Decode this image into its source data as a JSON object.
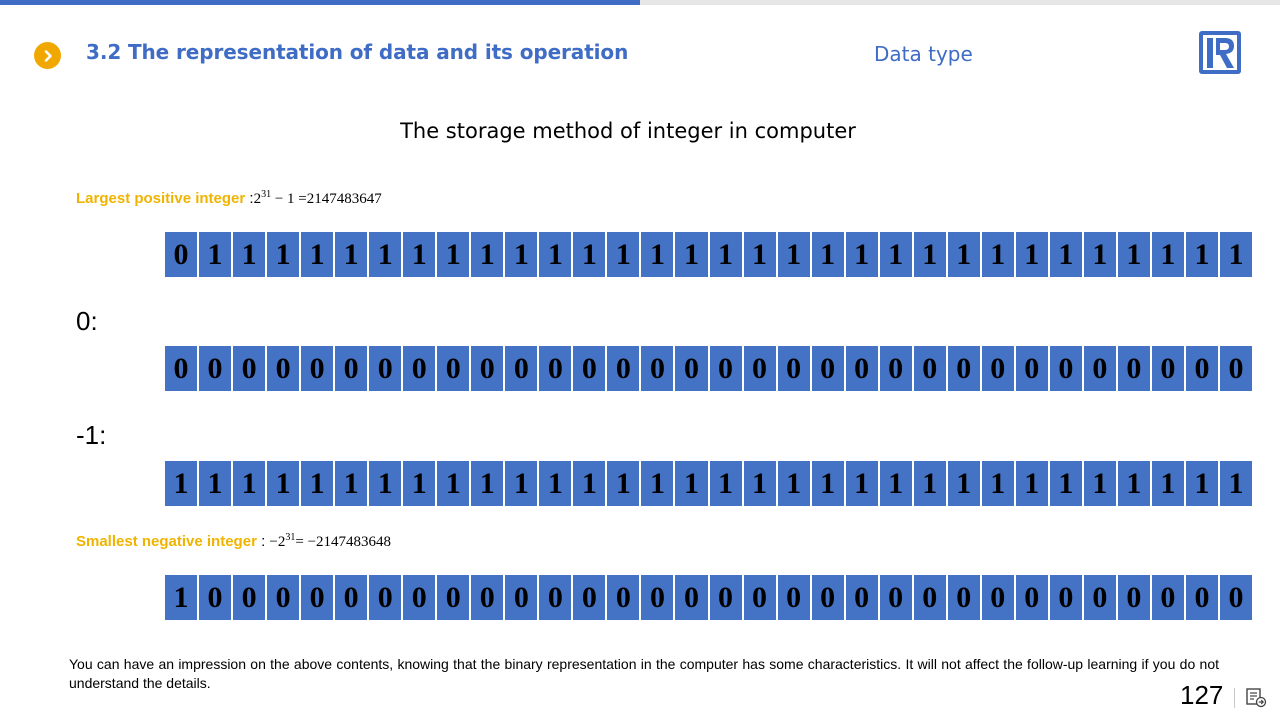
{
  "progress": {
    "fraction": 0.5,
    "color": "#3f6cc4"
  },
  "header": {
    "section_title": "3.2 The representation of data and its operation",
    "subject": "Data type",
    "section_icon": "chevron-right-icon",
    "logo": "R-logo"
  },
  "slide_title": "The storage method of integer in computer",
  "largest": {
    "label": "Largest positive integer",
    "sep": " :",
    "base": "2",
    "exp": "31",
    "tail": " − 1 =2147483647",
    "bits": "01111111111111111111111111111111"
  },
  "zero": {
    "label": "0:",
    "bits": "00000000000000000000000000000000"
  },
  "minus_one": {
    "label": "-1:",
    "bits": "11111111111111111111111111111111"
  },
  "smallest": {
    "label": "Smallest negative integer",
    "sep": " : ",
    "base": "−2",
    "exp": "31",
    "tail": "= −2147483648",
    "bits": "10000000000000000000000000000000"
  },
  "footnote": "You can have an impression on the above contents, knowing that the binary representation in the computer has some characteristics. It will not affect the follow-up learning if you do not understand the details.",
  "page_number": "127",
  "colors": {
    "accent_blue": "#3f6cc4",
    "cell_blue": "#4472c4",
    "highlight_yellow": "#f0b400"
  }
}
